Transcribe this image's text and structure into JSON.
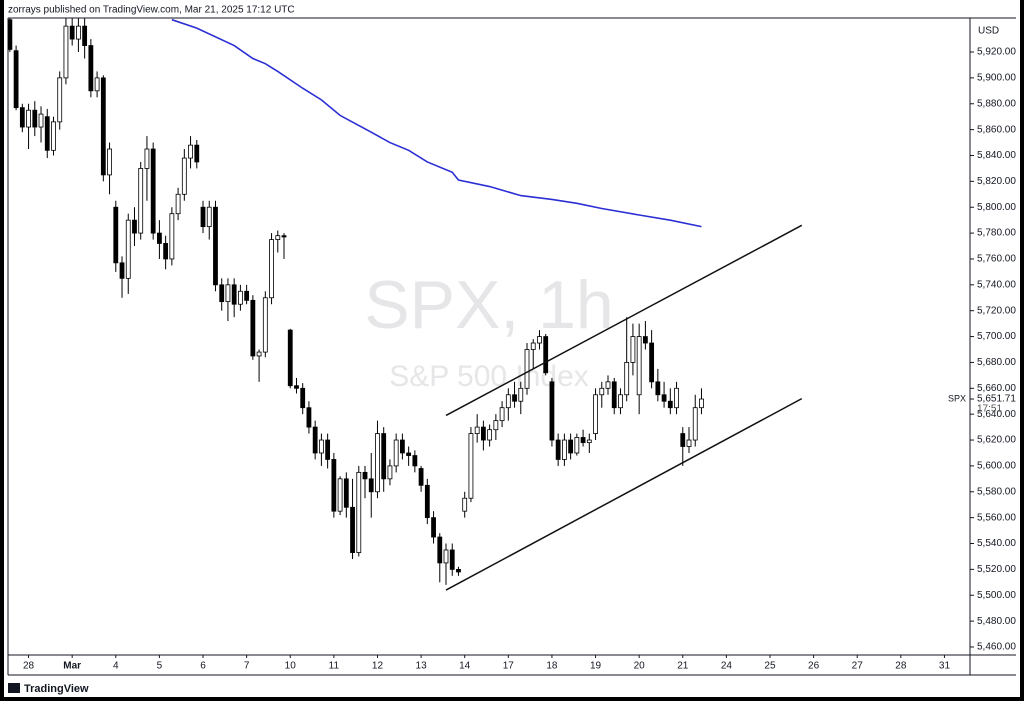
{
  "header": "zorrays published on TradingView.com, Mar 21, 2025 17:12 UTC",
  "footer": "TradingView",
  "chart_data": {
    "type": "candlestick",
    "watermark_title": "SPX, 1h",
    "watermark_subtitle": "S&P 500 Index",
    "currency": "USD",
    "symbol": "SPX",
    "countdown": "17:51",
    "last_price": {
      "value": 5651.71,
      "label": "5,651.71"
    },
    "up_color": "#ffffff",
    "down_color": "#000000",
    "xlim": [
      -0.3,
      154.1
    ],
    "ylim": [
      5453.8,
      5946.3
    ],
    "xticks": [
      {
        "value": 3,
        "label": "28"
      },
      {
        "value": 10,
        "label": "Mar"
      },
      {
        "value": 17,
        "label": "4"
      },
      {
        "value": 24,
        "label": "5"
      },
      {
        "value": 31,
        "label": "6"
      },
      {
        "value": 38,
        "label": "7"
      },
      {
        "value": 45,
        "label": "10"
      },
      {
        "value": 52,
        "label": "11"
      },
      {
        "value": 59,
        "label": "12"
      },
      {
        "value": 66,
        "label": "13"
      },
      {
        "value": 73,
        "label": "14"
      },
      {
        "value": 80,
        "label": "17"
      },
      {
        "value": 87,
        "label": "18"
      },
      {
        "value": 94,
        "label": "19"
      },
      {
        "value": 101,
        "label": "20"
      },
      {
        "value": 108,
        "label": "21"
      },
      {
        "value": 115,
        "label": "24"
      },
      {
        "value": 122,
        "label": "25"
      },
      {
        "value": 129,
        "label": "26"
      },
      {
        "value": 136,
        "label": "27"
      },
      {
        "value": 143,
        "label": "28"
      },
      {
        "value": 150,
        "label": "31"
      }
    ],
    "yticks": [
      {
        "value": 5460,
        "label": "5,460.00"
      },
      {
        "value": 5480,
        "label": "5,480.00"
      },
      {
        "value": 5500,
        "label": "5,500.00"
      },
      {
        "value": 5520,
        "label": "5,520.00"
      },
      {
        "value": 5540,
        "label": "5,540.00"
      },
      {
        "value": 5560,
        "label": "5,560.00"
      },
      {
        "value": 5580,
        "label": "5,580.00"
      },
      {
        "value": 5600,
        "label": "5,600.00"
      },
      {
        "value": 5620,
        "label": "5,620.00"
      },
      {
        "value": 5640,
        "label": "5,640.00"
      },
      {
        "value": 5660,
        "label": "5,660.00"
      },
      {
        "value": 5680,
        "label": "5,680.00"
      },
      {
        "value": 5700,
        "label": "5,700.00"
      },
      {
        "value": 5720,
        "label": "5,720.00"
      },
      {
        "value": 5740,
        "label": "5,740.00"
      },
      {
        "value": 5760,
        "label": "5,760.00"
      },
      {
        "value": 5780,
        "label": "5,780.00"
      },
      {
        "value": 5800,
        "label": "5,800.00"
      },
      {
        "value": 5820,
        "label": "5,820.00"
      },
      {
        "value": 5840,
        "label": "5,840.00"
      },
      {
        "value": 5860,
        "label": "5,860.00"
      },
      {
        "value": 5880,
        "label": "5,880.00"
      },
      {
        "value": 5900,
        "label": "5,900.00"
      },
      {
        "value": 5920,
        "label": "5,920.00"
      }
    ],
    "candles": {
      "open": [
        5945,
        5921,
        5877,
        5862,
        5875,
        5862,
        5870,
        5844,
        5866,
        5900,
        5940,
        5930,
        5940,
        5925,
        5890,
        5900,
        5825,
        5800,
        5757,
        5745,
        5790,
        5780,
        5830,
        5845,
        5780,
        5772,
        5760,
        5795,
        5810,
        5838,
        5848,
        5800,
        5785,
        5800,
        5740,
        5727,
        5740,
        5725,
        5735,
        5728,
        5685,
        5688,
        5730,
        5775,
        5778,
        5705,
        5662,
        5660,
        5645,
        5630,
        5610,
        5620,
        5605,
        5565,
        5590,
        5568,
        5533,
        5595,
        5590,
        5580,
        5625,
        5590,
        5600,
        5620,
        5610,
        5608,
        5598,
        5585,
        5560,
        5545,
        5525,
        5535,
        5520,
        5565,
        5575,
        5625,
        5630,
        5620,
        5628,
        5635,
        5645,
        5655,
        5650,
        5660,
        5690,
        5695,
        5700,
        5665,
        5620,
        5605,
        5620,
        5610,
        5622,
        5618,
        5625,
        5655,
        5660,
        5665,
        5645,
        5655,
        5680,
        5655,
        5700,
        5695,
        5665,
        5655,
        5650,
        5645,
        5625,
        5615,
        5620,
        5645
      ],
      "high": [
        5946,
        5925,
        5880,
        5880,
        5882,
        5878,
        5876,
        5870,
        5905,
        5946,
        5946,
        5946,
        5946,
        5930,
        5905,
        5902,
        5850,
        5805,
        5762,
        5795,
        5800,
        5835,
        5855,
        5850,
        5790,
        5778,
        5800,
        5815,
        5845,
        5855,
        5852,
        5805,
        5805,
        5805,
        5745,
        5745,
        5745,
        5740,
        5740,
        5732,
        5690,
        5735,
        5780,
        5782,
        5780,
        5706,
        5668,
        5664,
        5650,
        5635,
        5625,
        5625,
        5610,
        5592,
        5595,
        5590,
        5600,
        5600,
        5610,
        5635,
        5630,
        5605,
        5625,
        5625,
        5615,
        5612,
        5600,
        5590,
        5565,
        5548,
        5540,
        5540,
        5522,
        5580,
        5630,
        5640,
        5635,
        5632,
        5640,
        5650,
        5660,
        5665,
        5665,
        5695,
        5698,
        5705,
        5702,
        5668,
        5625,
        5625,
        5625,
        5625,
        5628,
        5625,
        5660,
        5665,
        5670,
        5668,
        5660,
        5715,
        5710,
        5710,
        5712,
        5705,
        5675,
        5665,
        5660,
        5665,
        5630,
        5630,
        5655,
        5660
      ],
      "low": [
        5920,
        5875,
        5858,
        5845,
        5855,
        5850,
        5838,
        5840,
        5860,
        5895,
        5925,
        5920,
        5915,
        5885,
        5885,
        5820,
        5810,
        5750,
        5730,
        5733,
        5770,
        5775,
        5805,
        5775,
        5760,
        5752,
        5755,
        5790,
        5805,
        5830,
        5830,
        5780,
        5775,
        5735,
        5720,
        5712,
        5715,
        5720,
        5725,
        5682,
        5665,
        5684,
        5725,
        5765,
        5760,
        5660,
        5656,
        5640,
        5625,
        5605,
        5600,
        5598,
        5560,
        5562,
        5560,
        5528,
        5530,
        5575,
        5560,
        5575,
        5580,
        5585,
        5595,
        5605,
        5600,
        5595,
        5580,
        5555,
        5540,
        5510,
        5508,
        5515,
        5515,
        5560,
        5572,
        5618,
        5612,
        5615,
        5620,
        5630,
        5635,
        5645,
        5640,
        5655,
        5675,
        5690,
        5670,
        5615,
        5600,
        5600,
        5605,
        5608,
        5615,
        5610,
        5620,
        5645,
        5655,
        5640,
        5640,
        5650,
        5670,
        5640,
        5690,
        5660,
        5650,
        5645,
        5640,
        5640,
        5600,
        5610,
        5615,
        5640
      ],
      "close": [
        5922,
        5877,
        5862,
        5875,
        5862,
        5872,
        5844,
        5866,
        5900,
        5940,
        5930,
        5940,
        5925,
        5890,
        5900,
        5825,
        5845,
        5757,
        5745,
        5790,
        5780,
        5830,
        5845,
        5780,
        5772,
        5760,
        5795,
        5810,
        5838,
        5848,
        5835,
        5785,
        5800,
        5740,
        5727,
        5740,
        5725,
        5735,
        5728,
        5685,
        5688,
        5730,
        5775,
        5778,
        5777,
        5662,
        5660,
        5645,
        5630,
        5610,
        5620,
        5605,
        5565,
        5590,
        5568,
        5533,
        5595,
        5590,
        5580,
        5625,
        5590,
        5600,
        5620,
        5610,
        5608,
        5600,
        5585,
        5560,
        5545,
        5525,
        5535,
        5520,
        5518,
        5575,
        5625,
        5630,
        5620,
        5628,
        5635,
        5645,
        5655,
        5650,
        5660,
        5690,
        5695,
        5700,
        5672,
        5620,
        5605,
        5620,
        5610,
        5622,
        5618,
        5620,
        5655,
        5660,
        5665,
        5645,
        5655,
        5680,
        5700,
        5700,
        5695,
        5665,
        5655,
        5650,
        5645,
        5660,
        5615,
        5620,
        5645,
        5651.71
      ]
    },
    "moving_average": {
      "color": "#2b2fd4",
      "x": [
        26,
        30,
        36,
        39,
        41,
        43,
        47,
        50,
        53,
        58,
        61,
        64,
        67,
        71,
        72,
        77,
        82,
        87,
        91,
        95,
        101,
        106,
        111
      ],
      "values": [
        5945,
        5938.5,
        5925,
        5915,
        5911,
        5905,
        5892,
        5883,
        5871,
        5858,
        5850,
        5844,
        5835,
        5827,
        5821,
        5816,
        5809,
        5806,
        5803,
        5799,
        5794,
        5790,
        5785
      ]
    },
    "trendlines": {
      "color": "#111111",
      "lines": [
        {
          "x": [
            70,
            127.1
          ],
          "values": [
            5639,
            5786
          ]
        },
        {
          "x": [
            70,
            127.1
          ],
          "values": [
            5504,
            5652
          ]
        }
      ]
    }
  }
}
